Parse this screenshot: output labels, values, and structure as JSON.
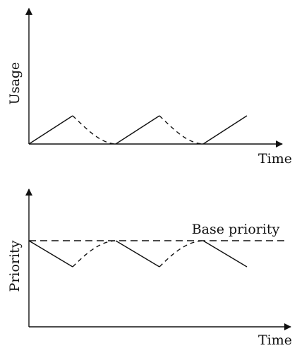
{
  "colors": {
    "ink": "#111111",
    "background": "#ffffff"
  },
  "top_plot": {
    "y_axis_label": "Usage",
    "x_axis_label": "Time"
  },
  "bottom_plot": {
    "y_axis_label": "Priority",
    "x_axis_label": "Time",
    "reference_label": "Base priority"
  }
}
